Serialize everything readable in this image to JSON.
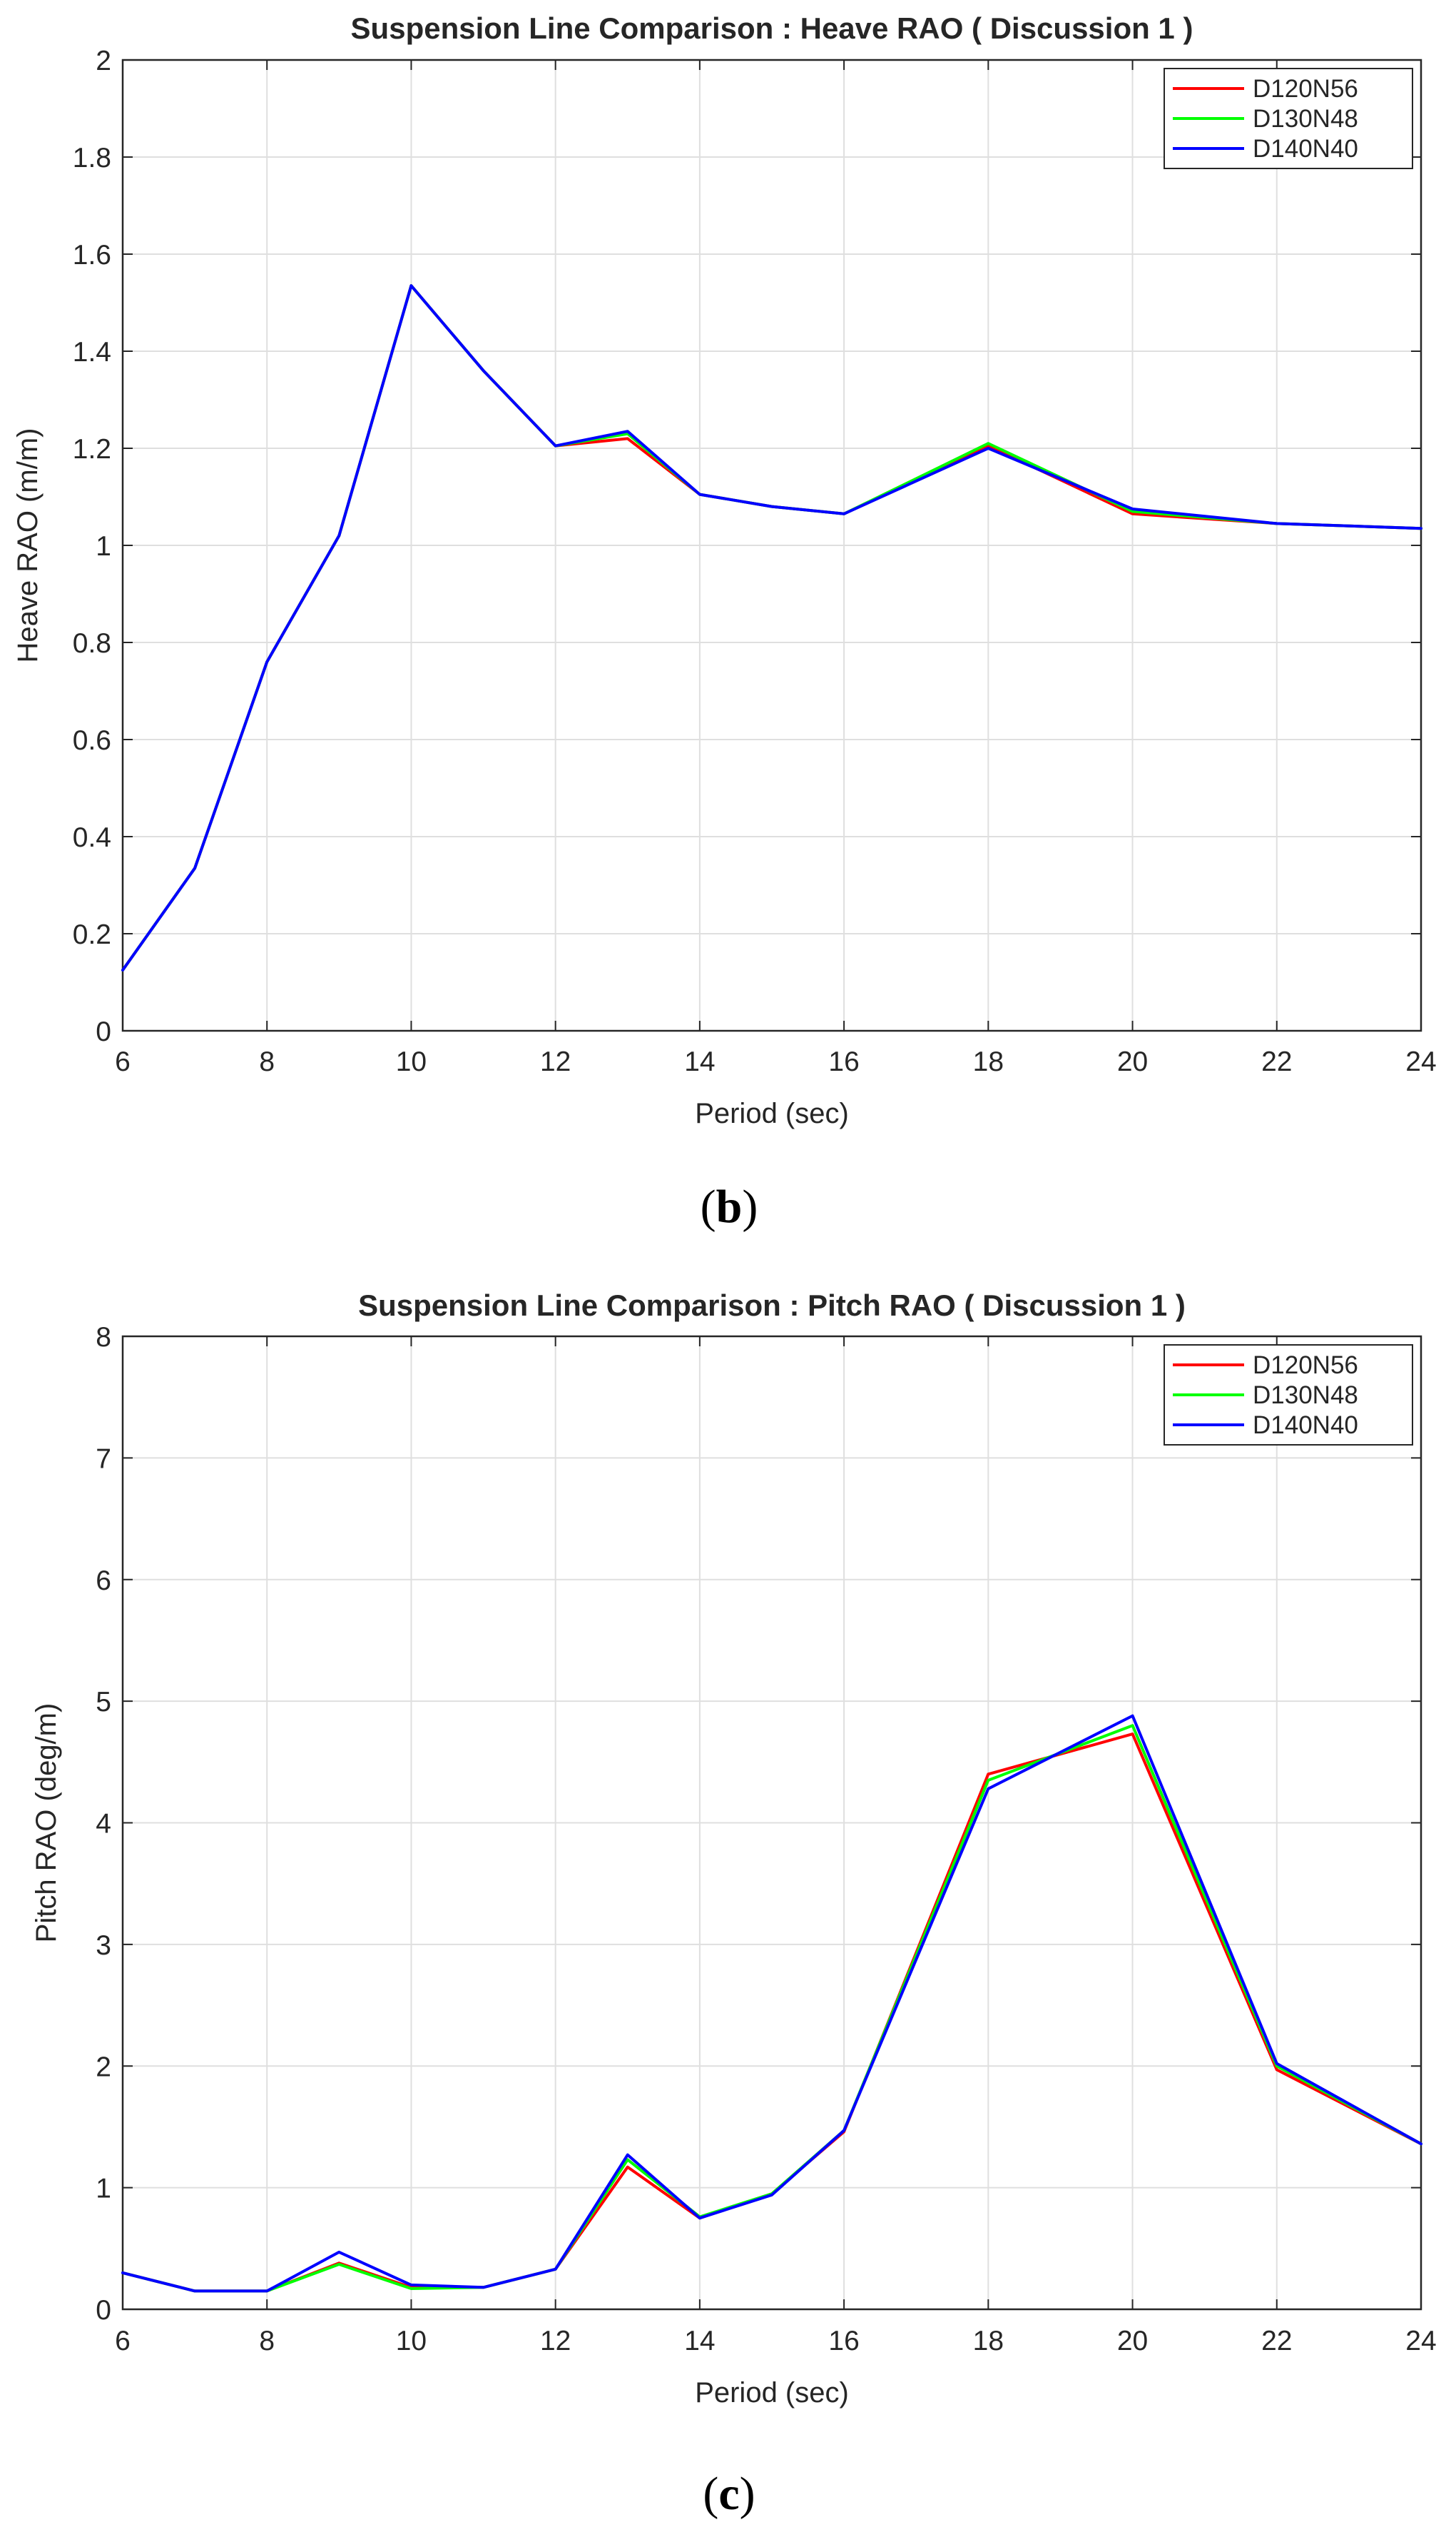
{
  "chart_data": [
    {
      "type": "line",
      "title": "Suspension Line Comparison : Heave RAO ( Discussion 1 )",
      "xlabel": "Period (sec)",
      "ylabel": "Heave RAO (m/m)",
      "xlim": [
        6,
        24
      ],
      "ylim": [
        0,
        2
      ],
      "xticks": [
        "6",
        "8",
        "10",
        "12",
        "14",
        "16",
        "18",
        "20",
        "22",
        "24"
      ],
      "yticks": [
        "0",
        "0.2",
        "0.4",
        "0.6",
        "0.8",
        "1",
        "1.2",
        "1.4",
        "1.6",
        "1.8",
        "2"
      ],
      "grid": true,
      "legend_position": "top-right",
      "x": [
        6,
        7,
        8,
        9,
        10,
        11,
        12,
        13,
        14,
        15,
        16,
        18,
        20,
        22,
        24
      ],
      "series": [
        {
          "name": "D120N56",
          "color": "#ff0000",
          "values": [
            0.125,
            0.335,
            0.76,
            1.02,
            1.535,
            1.36,
            1.205,
            1.22,
            1.105,
            1.08,
            1.065,
            1.205,
            1.065,
            1.045,
            1.035
          ]
        },
        {
          "name": "D130N48",
          "color": "#00ff00",
          "values": [
            0.125,
            0.335,
            0.76,
            1.02,
            1.535,
            1.36,
            1.205,
            1.23,
            1.105,
            1.08,
            1.065,
            1.21,
            1.07,
            1.045,
            1.035
          ]
        },
        {
          "name": "D140N40",
          "color": "#0000ff",
          "values": [
            0.125,
            0.335,
            0.76,
            1.02,
            1.535,
            1.36,
            1.205,
            1.235,
            1.105,
            1.08,
            1.065,
            1.2,
            1.075,
            1.045,
            1.035
          ]
        }
      ],
      "caption_open": "(",
      "caption_letter": "b",
      "caption_close": ")"
    },
    {
      "type": "line",
      "title": "Suspension Line Comparison : Pitch RAO ( Discussion 1 )",
      "xlabel": "Period (sec)",
      "ylabel": "Pitch RAO (deg/m)",
      "xlim": [
        6,
        24
      ],
      "ylim": [
        0,
        8
      ],
      "xticks": [
        "6",
        "8",
        "10",
        "12",
        "14",
        "16",
        "18",
        "20",
        "22",
        "24"
      ],
      "yticks": [
        "0",
        "1",
        "2",
        "3",
        "4",
        "5",
        "6",
        "7",
        "8"
      ],
      "grid": true,
      "legend_position": "top-right",
      "x": [
        6,
        7,
        8,
        9,
        10,
        11,
        12,
        13,
        14,
        15,
        16,
        18,
        20,
        22,
        24
      ],
      "series": [
        {
          "name": "D120N56",
          "color": "#ff0000",
          "values": [
            0.3,
            0.15,
            0.15,
            0.38,
            0.18,
            0.18,
            0.33,
            1.17,
            0.75,
            0.95,
            1.46,
            4.4,
            4.73,
            1.97,
            1.36
          ]
        },
        {
          "name": "D130N48",
          "color": "#00ff00",
          "values": [
            0.3,
            0.15,
            0.15,
            0.37,
            0.17,
            0.18,
            0.33,
            1.23,
            0.76,
            0.95,
            1.47,
            4.35,
            4.8,
            2.0,
            1.36
          ]
        },
        {
          "name": "D140N40",
          "color": "#0000ff",
          "values": [
            0.3,
            0.15,
            0.15,
            0.47,
            0.2,
            0.18,
            0.33,
            1.27,
            0.75,
            0.94,
            1.47,
            4.28,
            4.88,
            2.02,
            1.36
          ]
        }
      ],
      "caption_open": "(",
      "caption_letter": "c",
      "caption_close": ")"
    }
  ]
}
